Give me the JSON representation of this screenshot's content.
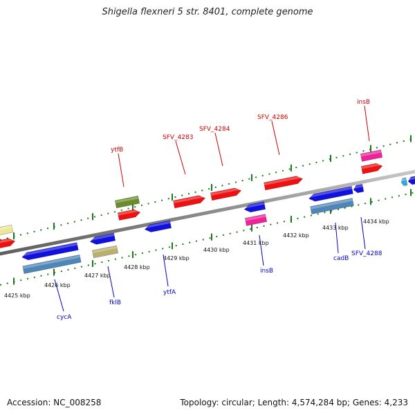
{
  "title": "Shigella flexneri 5 str. 8401, complete genome",
  "footer": {
    "accession": "Accession: NC_008258",
    "stats": "Topology: circular; Length: 4,574,284 bp; Genes: 4,233"
  },
  "ticks": [
    "4425 kbp",
    "4426 kbp",
    "4427 kbp",
    "4428 kbp",
    "4429 kbp",
    "4430 kbp",
    "4431 kbp",
    "4432 kbp",
    "4433 kbp",
    "4434 kbp"
  ],
  "labels_forward": [
    "ytfB",
    "SFV_4283",
    "SFV_4284",
    "SFV_4286",
    "insB"
  ],
  "labels_reverse": [
    "cycA",
    "fklB",
    "ytfA",
    "insB",
    "cadB",
    "SFV_4288"
  ],
  "colors": {
    "forward_cds": "#ee1111",
    "reverse_cds": "#1111dd",
    "mobile": "#ee2299",
    "steel": "#4f86b8",
    "olive": "#6b8c2a",
    "khaki": "#b9b070",
    "pale": "#efe69a",
    "cyan": "#33aadd",
    "tick": "#1a7a1a",
    "backbone": "#8a8a8a"
  }
}
